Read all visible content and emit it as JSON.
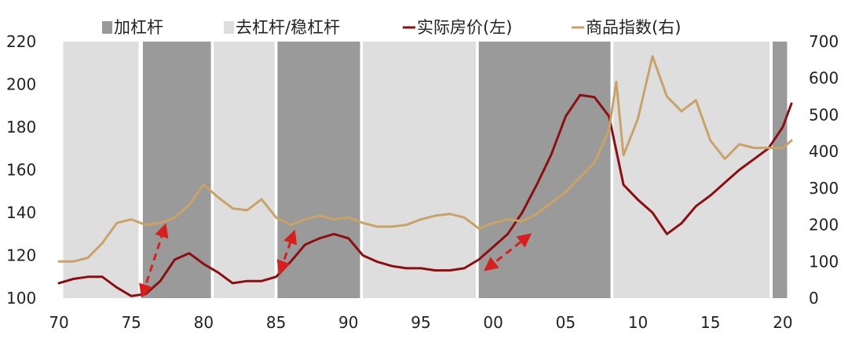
{
  "chart_data": {
    "type": "line",
    "legend": {
      "placement": "top",
      "items": [
        {
          "label": "加杠杆",
          "kind": "band",
          "color": "#9a9a9a"
        },
        {
          "label": "去杠杆/稳杠杆",
          "kind": "band",
          "color": "#dedede"
        },
        {
          "label": "实际房价(左)",
          "kind": "line",
          "color": "#8b0f12"
        },
        {
          "label": "商品指数(右)",
          "kind": "line",
          "color": "#c9a26a"
        }
      ]
    },
    "x_axis": {
      "range": [
        1970,
        2020.6
      ],
      "ticks": [
        1970,
        1975,
        1980,
        1985,
        1990,
        1995,
        2000,
        2005,
        2010,
        2015,
        2020
      ],
      "tick_labels": [
        "70",
        "75",
        "80",
        "85",
        "90",
        "95",
        "00",
        "05",
        "10",
        "15",
        "20"
      ]
    },
    "y_left": {
      "range": [
        100,
        220
      ],
      "ticks": [
        100,
        120,
        140,
        160,
        180,
        200,
        220
      ]
    },
    "y_right": {
      "range": [
        0,
        700
      ],
      "ticks": [
        0,
        100,
        200,
        300,
        400,
        500,
        600,
        700
      ]
    },
    "grid": false,
    "bands": [
      {
        "type": "去杠杆/稳杠杆",
        "start": 1970.3,
        "end": 1975.5
      },
      {
        "type": "加杠杆",
        "start": 1975.8,
        "end": 1980.5
      },
      {
        "type": "去杠杆/稳杠杆",
        "start": 1980.7,
        "end": 1984.9
      },
      {
        "type": "加杠杆",
        "start": 1985.1,
        "end": 1990.8
      },
      {
        "type": "去杠杆/稳杠杆",
        "start": 1991.0,
        "end": 1998.8
      },
      {
        "type": "加杠杆",
        "start": 1999.0,
        "end": 2008.1
      },
      {
        "type": "去杠杆/稳杠杆",
        "start": 2008.3,
        "end": 2019.1
      },
      {
        "type": "加杠杆",
        "start": 2019.3,
        "end": 2020.3
      }
    ],
    "series": [
      {
        "name": "实际房价(左)",
        "axis": "left",
        "color": "#8b0f12",
        "x": [
          1970,
          1971,
          1972,
          1973,
          1974,
          1975,
          1976,
          1977,
          1978,
          1979,
          1980,
          1981,
          1982,
          1983,
          1984,
          1985,
          1986,
          1987,
          1988,
          1989,
          1990,
          1991,
          1992,
          1993,
          1994,
          1995,
          1996,
          1997,
          1998,
          1999,
          2000,
          2001,
          2002,
          2003,
          2004,
          2005,
          2006,
          2007,
          2008,
          2009,
          2010,
          2011,
          2012,
          2013,
          2014,
          2015,
          2016,
          2017,
          2018,
          2019,
          2020,
          2020.6
        ],
        "y": [
          107,
          109,
          110,
          110,
          105,
          101,
          102,
          108,
          118,
          121,
          116,
          112,
          107,
          108,
          108,
          110,
          117,
          125,
          128,
          130,
          128,
          120,
          117,
          115,
          114,
          114,
          113,
          113,
          114,
          118,
          124,
          130,
          140,
          153,
          167,
          185,
          195,
          194,
          185,
          153,
          146,
          140,
          130,
          135,
          143,
          148,
          154,
          160,
          165,
          170,
          180,
          191
        ]
      },
      {
        "name": "商品指数(右)",
        "axis": "right",
        "color": "#c9a26a",
        "x": [
          1970,
          1971,
          1972,
          1973,
          1974,
          1975,
          1976,
          1977,
          1978,
          1979,
          1980,
          1981,
          1982,
          1983,
          1984,
          1985,
          1986,
          1987,
          1988,
          1989,
          1990,
          1991,
          1992,
          1993,
          1994,
          1995,
          1996,
          1997,
          1998,
          1999,
          2000,
          2001,
          2002,
          2003,
          2004,
          2005,
          2006,
          2007,
          2008,
          2008.5,
          2009,
          2010,
          2011,
          2012,
          2013,
          2014,
          2015,
          2016,
          2017,
          2018,
          2019,
          2020,
          2020.6
        ],
        "y": [
          100,
          100,
          110,
          150,
          205,
          215,
          200,
          205,
          220,
          255,
          310,
          275,
          245,
          240,
          270,
          220,
          200,
          215,
          225,
          215,
          220,
          205,
          195,
          195,
          200,
          215,
          225,
          230,
          220,
          190,
          205,
          215,
          210,
          230,
          260,
          290,
          330,
          370,
          460,
          590,
          390,
          490,
          660,
          550,
          510,
          540,
          430,
          380,
          420,
          410,
          410,
          410,
          430
        ]
      }
    ],
    "annotations": [
      {
        "type": "double-arrow",
        "color": "#d62020",
        "from": [
          1975.8,
          102
        ],
        "to": [
          1977.3,
          133
        ]
      },
      {
        "type": "double-arrow",
        "color": "#d62020",
        "from": [
          1985.3,
          113
        ],
        "to": [
          1986.2,
          130
        ]
      },
      {
        "type": "double-arrow",
        "color": "#d62020",
        "from": [
          1999.6,
          114
        ],
        "to": [
          2002.4,
          129
        ]
      }
    ]
  }
}
